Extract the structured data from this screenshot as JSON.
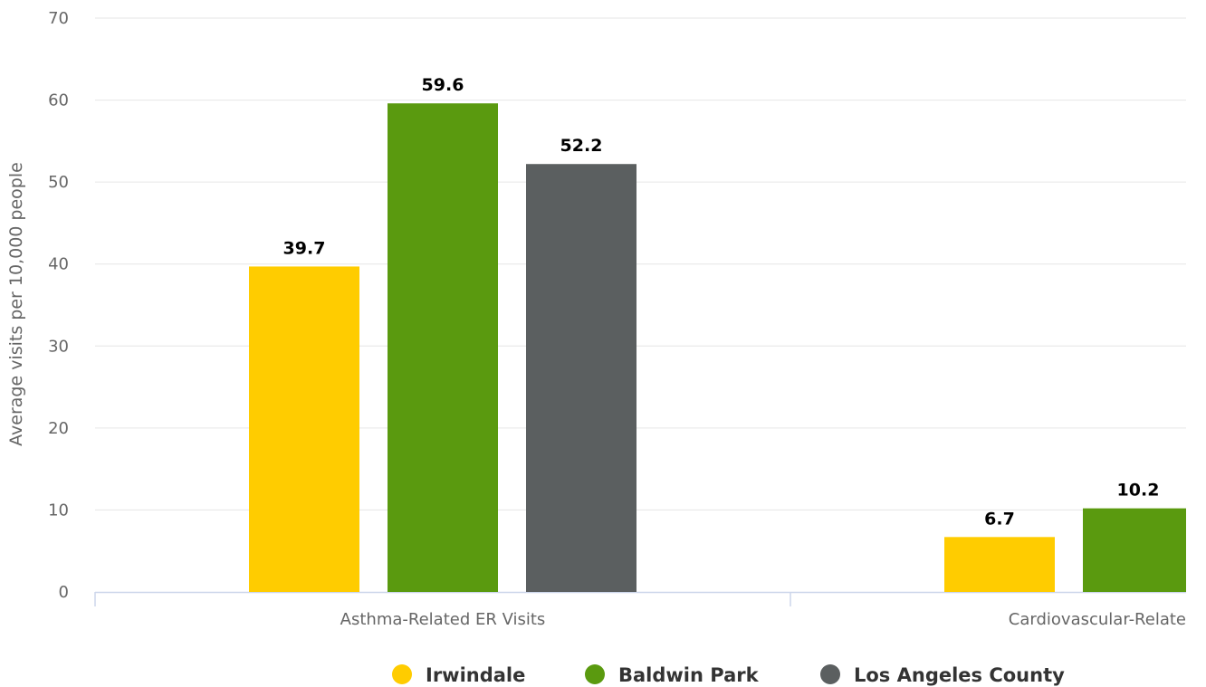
{
  "chart_data": {
    "type": "bar",
    "ylabel": "Average visits per 10,000 people",
    "xlabel": "",
    "ylim": [
      0,
      70
    ],
    "yticks": [
      0,
      10,
      20,
      30,
      40,
      50,
      60,
      70
    ],
    "categories": [
      "Asthma-Related ER Visits",
      "Cardiovascular-Related ER Visits"
    ],
    "visible_category_text": [
      "Asthma-Related ER Visits",
      "Cardiovascular-Relate"
    ],
    "series": [
      {
        "name": "Irwindale",
        "color": "#ffcc00",
        "values": [
          39.7,
          6.7
        ],
        "labels": [
          "39.7",
          "6.7"
        ]
      },
      {
        "name": "Baldwin Park",
        "color": "#5a9a0f",
        "values": [
          59.6,
          10.2
        ],
        "labels": [
          "59.6",
          "10.2"
        ]
      },
      {
        "name": "Los Angeles County",
        "color": "#5b5f60",
        "values": [
          52.2,
          null
        ],
        "labels": [
          "52.2",
          ""
        ]
      }
    ],
    "legend_position": "bottom-center",
    "grid": true
  }
}
